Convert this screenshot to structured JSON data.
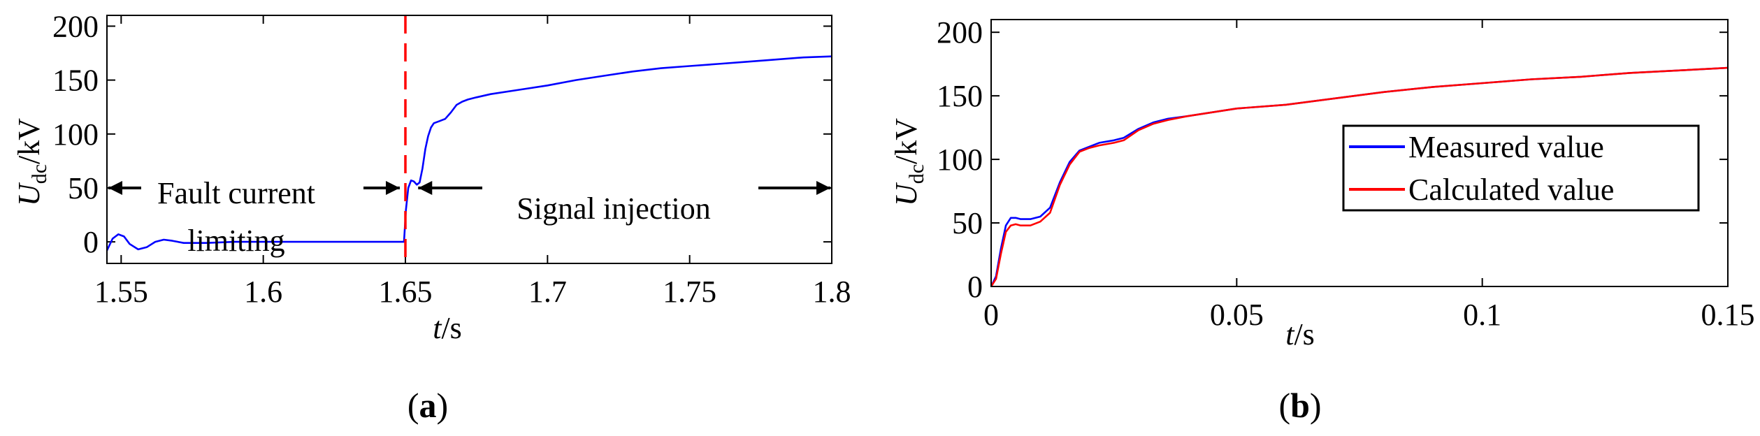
{
  "chart_data": [
    {
      "type": "line",
      "panel_label": "(a)",
      "panel_label_parts": {
        "open": "(",
        "letter": "a",
        "close": ")"
      },
      "xlabel": {
        "var": "t",
        "unit": "/s"
      },
      "ylabel": {
        "var": "U",
        "sub": "dc",
        "unit": "/kV"
      },
      "xlim": [
        1.545,
        1.8
      ],
      "ylim": [
        -20,
        210
      ],
      "xticks": [
        1.55,
        1.6,
        1.65,
        1.7,
        1.75,
        1.8
      ],
      "xtick_labels": [
        "1.55",
        "1.6",
        "1.65",
        "1.7",
        "1.75",
        "1.8"
      ],
      "yticks": [
        0,
        50,
        100,
        150,
        200
      ],
      "ytick_labels": [
        "0",
        "50",
        "100",
        "150",
        "200"
      ],
      "fault_time": 1.65,
      "series": [
        {
          "name": "Udc",
          "color": "#0000ff",
          "x": [
            1.545,
            1.547,
            1.549,
            1.551,
            1.553,
            1.556,
            1.559,
            1.562,
            1.565,
            1.568,
            1.572,
            1.576,
            1.58,
            1.59,
            1.6,
            1.62,
            1.64,
            1.6495,
            1.6502,
            1.651,
            1.652,
            1.653,
            1.654,
            1.655,
            1.656,
            1.657,
            1.658,
            1.659,
            1.66,
            1.662,
            1.664,
            1.666,
            1.668,
            1.67,
            1.672,
            1.675,
            1.68,
            1.69,
            1.7,
            1.71,
            1.72,
            1.73,
            1.74,
            1.75,
            1.76,
            1.77,
            1.78,
            1.79,
            1.8
          ],
          "y": [
            -8,
            3,
            7,
            5,
            -2,
            -7,
            -5,
            0,
            2,
            1,
            -1,
            -1,
            -1,
            0,
            0,
            0,
            0,
            0,
            30,
            50,
            57,
            56,
            53,
            55,
            68,
            86,
            98,
            106,
            110,
            112,
            114,
            120,
            127,
            130,
            132,
            134,
            137,
            141,
            145,
            150,
            154,
            158,
            161,
            163,
            165,
            167,
            169,
            171,
            172
          ]
        }
      ],
      "annotations": [
        {
          "text_lines": [
            "Fault current",
            "limiting"
          ],
          "arrow_from": 1.545,
          "arrow_to": 1.65,
          "y": 50
        },
        {
          "text": "Signal injection",
          "arrow_from": 1.654,
          "arrow_to": 1.8,
          "y": 50
        }
      ]
    },
    {
      "type": "line",
      "panel_label": "(b)",
      "panel_label_parts": {
        "open": "(",
        "letter": "b",
        "close": ")"
      },
      "xlabel": {
        "var": "t",
        "unit": "/s"
      },
      "ylabel": {
        "var": "U",
        "sub": "dc",
        "unit": "/kV"
      },
      "xlim": [
        0,
        0.15
      ],
      "ylim": [
        0,
        210
      ],
      "xticks": [
        0,
        0.05,
        0.1,
        0.15
      ],
      "xtick_labels": [
        "0",
        "0.05",
        "0.1",
        "0.15"
      ],
      "yticks": [
        0,
        50,
        100,
        150,
        200
      ],
      "ytick_labels": [
        "0",
        "50",
        "100",
        "150",
        "200"
      ],
      "legend_position": "center-right",
      "series": [
        {
          "name": "Measured value",
          "color": "#0000ff",
          "x": [
            0,
            0.001,
            0.002,
            0.003,
            0.004,
            0.005,
            0.006,
            0.008,
            0.01,
            0.012,
            0.014,
            0.016,
            0.018,
            0.02,
            0.022,
            0.025,
            0.027,
            0.03,
            0.033,
            0.036,
            0.04,
            0.05,
            0.06,
            0.07,
            0.08,
            0.09,
            0.1,
            0.11,
            0.12,
            0.13,
            0.14,
            0.15
          ],
          "y": [
            0,
            8,
            30,
            48,
            54,
            54,
            53,
            53,
            55,
            62,
            82,
            98,
            107,
            110,
            113,
            115,
            117,
            124,
            129,
            132,
            134,
            140,
            143,
            148,
            153,
            157,
            160,
            163,
            165,
            168,
            170,
            172
          ]
        },
        {
          "name": "Calculated value",
          "color": "#ff0000",
          "x": [
            0,
            0.001,
            0.002,
            0.003,
            0.004,
            0.005,
            0.006,
            0.008,
            0.01,
            0.012,
            0.014,
            0.016,
            0.018,
            0.02,
            0.022,
            0.025,
            0.027,
            0.03,
            0.033,
            0.036,
            0.04,
            0.05,
            0.06,
            0.07,
            0.08,
            0.09,
            0.1,
            0.11,
            0.12,
            0.13,
            0.14,
            0.15
          ],
          "y": [
            0,
            6,
            26,
            43,
            48,
            49,
            48,
            48,
            51,
            58,
            80,
            96,
            106,
            109,
            111,
            113,
            115,
            123,
            128,
            131,
            134,
            140,
            143,
            148,
            153,
            157,
            160,
            163,
            165,
            168,
            170,
            172
          ]
        }
      ]
    }
  ]
}
